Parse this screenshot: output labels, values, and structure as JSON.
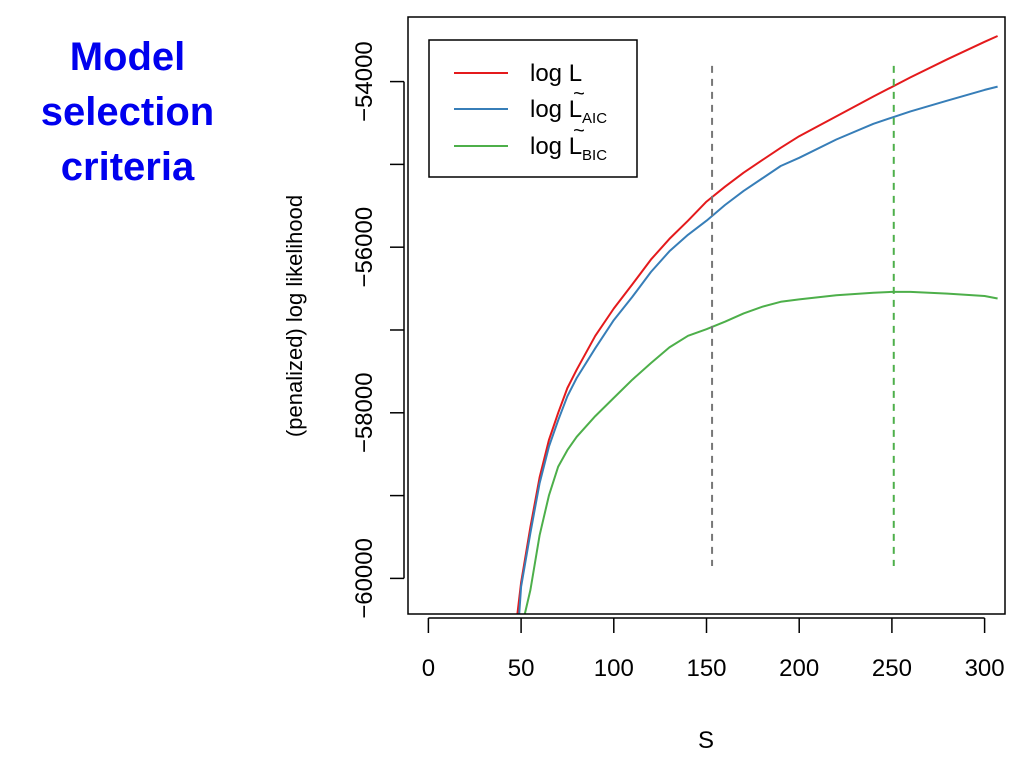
{
  "slide": {
    "title_lines": [
      "Model",
      "selection",
      "criteria"
    ]
  },
  "chart_data": {
    "type": "line",
    "title": "",
    "xlabel": "S",
    "ylabel": "(penalized) log likelihood",
    "xlim": [
      -11,
      311
    ],
    "ylim": [
      -60430,
      -53220
    ],
    "xticks": [
      0,
      50,
      100,
      150,
      200,
      250,
      300
    ],
    "xtick_labels": [
      "0",
      "50",
      "100",
      "150",
      "200",
      "250",
      "300"
    ],
    "yticks": [
      -60000,
      -59000,
      -58000,
      -57000,
      -56000,
      -55000,
      -54000
    ],
    "ytick_labels": [
      "−60000",
      "",
      "−58000",
      "",
      "−56000",
      "",
      "−54000"
    ],
    "grid": false,
    "legend_position": "top-left",
    "series": [
      {
        "name": "log L",
        "legend_base": "log L",
        "legend_sub": "",
        "tilde": false,
        "color": "#e41a1c",
        "x": [
          48,
          50,
          55,
          60,
          65,
          70,
          75,
          80,
          90,
          100,
          110,
          120,
          130,
          140,
          150,
          160,
          170,
          180,
          190,
          200,
          220,
          240,
          260,
          280,
          300,
          307
        ],
        "y": [
          -60430,
          -60050,
          -59380,
          -58780,
          -58330,
          -58000,
          -57700,
          -57480,
          -57070,
          -56740,
          -56450,
          -56150,
          -55900,
          -55680,
          -55450,
          -55270,
          -55100,
          -54950,
          -54800,
          -54660,
          -54420,
          -54180,
          -53950,
          -53730,
          -53520,
          -53450
        ]
      },
      {
        "name": "log L AIC",
        "legend_base": "log L",
        "legend_sub": "AIC",
        "tilde": true,
        "color": "#377eb8",
        "x": [
          49,
          50,
          55,
          60,
          65,
          70,
          75,
          80,
          90,
          100,
          110,
          120,
          130,
          140,
          150,
          160,
          170,
          180,
          190,
          200,
          220,
          240,
          260,
          280,
          300,
          307
        ],
        "y": [
          -60430,
          -60100,
          -59450,
          -58850,
          -58410,
          -58090,
          -57800,
          -57580,
          -57220,
          -56880,
          -56600,
          -56300,
          -56050,
          -55850,
          -55680,
          -55490,
          -55320,
          -55170,
          -55020,
          -54920,
          -54700,
          -54510,
          -54360,
          -54230,
          -54100,
          -54060
        ]
      },
      {
        "name": "log L BIC",
        "legend_base": "log L",
        "legend_sub": "BIC",
        "tilde": true,
        "color": "#4daf4a",
        "x": [
          52,
          55,
          60,
          65,
          70,
          75,
          80,
          90,
          100,
          110,
          120,
          130,
          140,
          150,
          160,
          170,
          180,
          190,
          200,
          220,
          240,
          250,
          260,
          280,
          300,
          307
        ],
        "y": [
          -60430,
          -60140,
          -59480,
          -59000,
          -58650,
          -58450,
          -58290,
          -58040,
          -57820,
          -57600,
          -57400,
          -57210,
          -57070,
          -56990,
          -56900,
          -56800,
          -56720,
          -56660,
          -56630,
          -56580,
          -56550,
          -56540,
          -56540,
          -56560,
          -56590,
          -56620
        ]
      }
    ],
    "vlines": [
      {
        "x": 153,
        "y_top": -53810,
        "y_bottom": -59850,
        "color": "#777777"
      },
      {
        "x": 251,
        "y_top": -53810,
        "y_bottom": -59850,
        "color": "#4daf4a"
      }
    ]
  }
}
